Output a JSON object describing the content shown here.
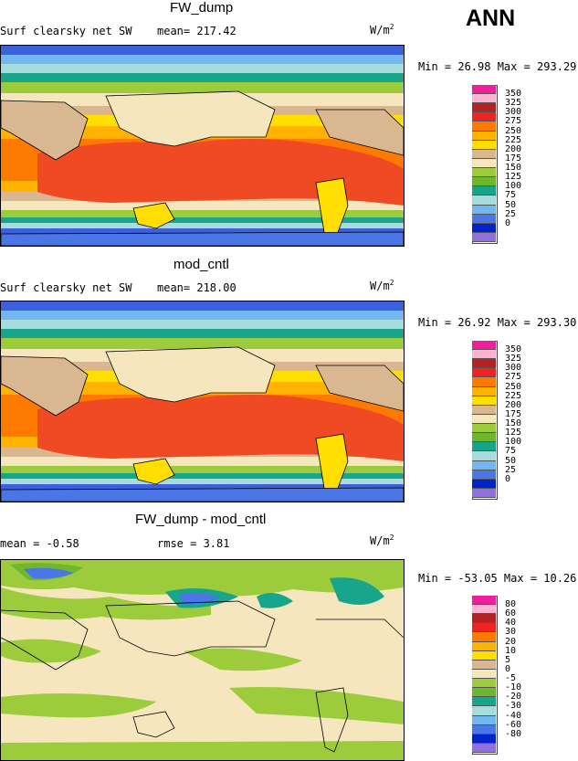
{
  "season": "ANN",
  "panels": [
    {
      "title": "FW_dump",
      "left_label": "Surf clearsky net SW",
      "mean_label": "mean= 217.42",
      "units": "W/m",
      "units_sup": "2",
      "min_max": "Min =  26.98 Max = 293.29",
      "colorbar_labels": [
        "350",
        "325",
        "300",
        "275",
        "250",
        "225",
        "200",
        "175",
        "150",
        "125",
        "100",
        "75",
        "50",
        "25",
        "0"
      ]
    },
    {
      "title": "mod_cntl",
      "left_label": "Surf clearsky net SW",
      "mean_label": "mean= 218.00",
      "units": "W/m",
      "units_sup": "2",
      "min_max": "Min =  26.92 Max = 293.30",
      "colorbar_labels": [
        "350",
        "325",
        "300",
        "275",
        "250",
        "225",
        "200",
        "175",
        "150",
        "125",
        "100",
        "75",
        "50",
        "25",
        "0"
      ]
    },
    {
      "title": "FW_dump - mod_cntl",
      "left_label": "mean =   -0.58",
      "mean_label": "rmse =    3.81",
      "units": "W/m",
      "units_sup": "2",
      "min_max": "Min = -53.05 Max =  10.26",
      "colorbar_labels": [
        "80",
        "60",
        "40",
        "30",
        "20",
        "10",
        "5",
        "0",
        "-5",
        "-10",
        "-20",
        "-30",
        "-40",
        "-60",
        "-80"
      ]
    }
  ],
  "colors": {
    "levels": [
      "#ef1f9c",
      "#ffb3d1",
      "#b32323",
      "#ef2323",
      "#ff7a00",
      "#ffb300",
      "#ffde00",
      "#d9b891",
      "#f5e6be",
      "#9ccc3c",
      "#6fb82d",
      "#17a58c",
      "#a6dcdc",
      "#72b7ef",
      "#4a76e6",
      "#0023cc",
      "#9070dd"
    ],
    "ocean_deep": "#4169e1",
    "coast": "#000000"
  },
  "chart_data": [
    {
      "type": "heatmap",
      "title": "FW_dump",
      "field": "Surf clearsky net SW",
      "mean": 217.42,
      "units": "W/m2",
      "min": 26.98,
      "max": 293.29,
      "levels": [
        0,
        25,
        50,
        75,
        100,
        125,
        150,
        175,
        200,
        225,
        250,
        275,
        300,
        325,
        350
      ],
      "zonal_profile_approx": [
        {
          "lat": 90,
          "value": 50
        },
        {
          "lat": 70,
          "value": 90
        },
        {
          "lat": 55,
          "value": 160
        },
        {
          "lat": 40,
          "value": 230
        },
        {
          "lat": 20,
          "value": 270
        },
        {
          "lat": 0,
          "value": 285
        },
        {
          "lat": -20,
          "value": 280
        },
        {
          "lat": -40,
          "value": 220
        },
        {
          "lat": -55,
          "value": 160
        },
        {
          "lat": -70,
          "value": 80
        },
        {
          "lat": -90,
          "value": 40
        }
      ]
    },
    {
      "type": "heatmap",
      "title": "mod_cntl",
      "field": "Surf clearsky net SW",
      "mean": 218.0,
      "units": "W/m2",
      "min": 26.92,
      "max": 293.3,
      "levels": [
        0,
        25,
        50,
        75,
        100,
        125,
        150,
        175,
        200,
        225,
        250,
        275,
        300,
        325,
        350
      ],
      "zonal_profile_approx": [
        {
          "lat": 90,
          "value": 50
        },
        {
          "lat": 70,
          "value": 90
        },
        {
          "lat": 55,
          "value": 160
        },
        {
          "lat": 40,
          "value": 230
        },
        {
          "lat": 20,
          "value": 270
        },
        {
          "lat": 0,
          "value": 285
        },
        {
          "lat": -20,
          "value": 280
        },
        {
          "lat": -40,
          "value": 220
        },
        {
          "lat": -55,
          "value": 160
        },
        {
          "lat": -70,
          "value": 80
        },
        {
          "lat": -90,
          "value": 40
        }
      ]
    },
    {
      "type": "heatmap",
      "title": "FW_dump - mod_cntl",
      "mean": -0.58,
      "rmse": 3.81,
      "units": "W/m2",
      "min": -53.05,
      "max": 10.26,
      "levels": [
        -80,
        -60,
        -40,
        -30,
        -20,
        -10,
        -5,
        0,
        5,
        10,
        20,
        30,
        40,
        60,
        80
      ]
    }
  ]
}
